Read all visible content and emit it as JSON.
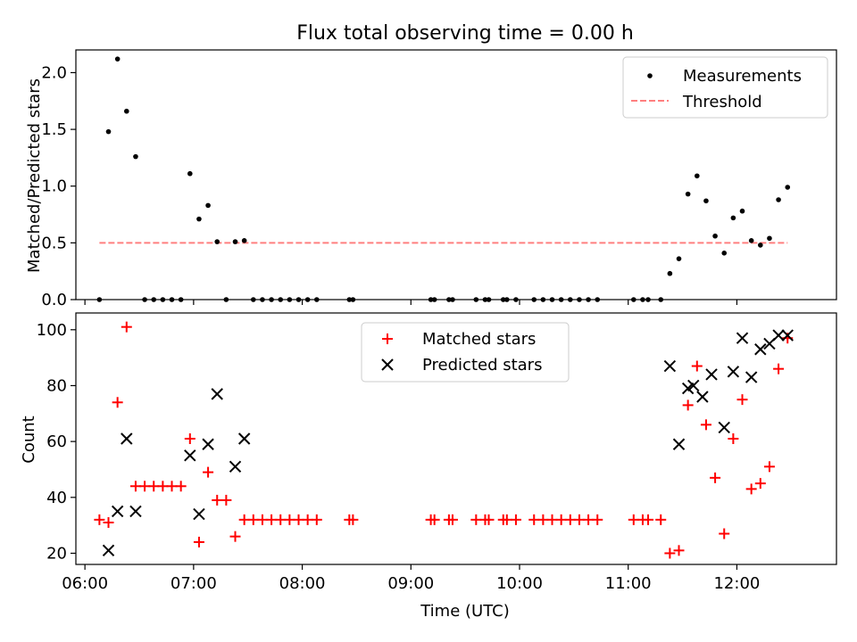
{
  "title": "Flux total observing time = 0.00 h",
  "colors": {
    "measurements": "#000000",
    "threshold": "#ff0000",
    "matched": "#ff0000",
    "predicted": "#000000"
  },
  "chart_data": [
    {
      "type": "scatter",
      "panel": "top",
      "title": "Flux total observing time = 0.00 h",
      "xlabel": "",
      "ylabel": "Matched/Predicted stars",
      "xlim": [
        "05:55",
        "12:55"
      ],
      "ylim": [
        0.0,
        2.2
      ],
      "yticks": [
        "0.0",
        "0.5",
        "1.0",
        "1.5",
        "2.0"
      ],
      "xticks": [],
      "legend_position": "top-right",
      "series": [
        {
          "name": "Measurements",
          "marker": "dot",
          "points": [
            [
              "06:08",
              0.0
            ],
            [
              "06:13",
              1.48
            ],
            [
              "06:18",
              2.12
            ],
            [
              "06:23",
              1.66
            ],
            [
              "06:28",
              1.26
            ],
            [
              "06:33",
              0.0
            ],
            [
              "06:38",
              0.0
            ],
            [
              "06:43",
              0.0
            ],
            [
              "06:48",
              0.0
            ],
            [
              "06:53",
              0.0
            ],
            [
              "06:58",
              1.11
            ],
            [
              "07:03",
              0.71
            ],
            [
              "07:08",
              0.83
            ],
            [
              "07:13",
              0.51
            ],
            [
              "07:18",
              0.0
            ],
            [
              "07:23",
              0.51
            ],
            [
              "07:28",
              0.52
            ],
            [
              "07:33",
              0.0
            ],
            [
              "07:38",
              0.0
            ],
            [
              "07:43",
              0.0
            ],
            [
              "07:48",
              0.0
            ],
            [
              "07:53",
              0.0
            ],
            [
              "07:58",
              0.0
            ],
            [
              "08:03",
              0.0
            ],
            [
              "08:08",
              0.0
            ],
            [
              "08:26",
              0.0
            ],
            [
              "08:28",
              0.0
            ],
            [
              "09:11",
              0.0
            ],
            [
              "09:13",
              0.0
            ],
            [
              "09:21",
              0.0
            ],
            [
              "09:23",
              0.0
            ],
            [
              "09:36",
              0.0
            ],
            [
              "09:41",
              0.0
            ],
            [
              "09:43",
              0.0
            ],
            [
              "09:51",
              0.0
            ],
            [
              "09:53",
              0.0
            ],
            [
              "09:58",
              0.0
            ],
            [
              "10:08",
              0.0
            ],
            [
              "10:13",
              0.0
            ],
            [
              "10:18",
              0.0
            ],
            [
              "10:23",
              0.0
            ],
            [
              "10:28",
              0.0
            ],
            [
              "10:33",
              0.0
            ],
            [
              "10:38",
              0.0
            ],
            [
              "10:43",
              0.0
            ],
            [
              "11:03",
              0.0
            ],
            [
              "11:08",
              0.0
            ],
            [
              "11:11",
              0.0
            ],
            [
              "11:18",
              0.0
            ],
            [
              "11:23",
              0.23
            ],
            [
              "11:28",
              0.36
            ],
            [
              "11:33",
              0.93
            ],
            [
              "11:38",
              1.09
            ],
            [
              "11:43",
              0.87
            ],
            [
              "11:48",
              0.56
            ],
            [
              "11:53",
              0.41
            ],
            [
              "11:58",
              0.72
            ],
            [
              "12:03",
              0.78
            ],
            [
              "12:08",
              0.52
            ],
            [
              "12:13",
              0.48
            ],
            [
              "12:18",
              0.54
            ],
            [
              "12:23",
              0.88
            ],
            [
              "12:28",
              0.99
            ]
          ]
        },
        {
          "name": "Threshold",
          "marker": "dashed-line",
          "points": [
            [
              "06:08",
              0.5
            ],
            [
              "12:28",
              0.5
            ]
          ]
        }
      ]
    },
    {
      "type": "scatter",
      "panel": "bottom",
      "title": "",
      "xlabel": "Time (UTC)",
      "ylabel": "Count",
      "xlim": [
        "05:55",
        "12:55"
      ],
      "ylim": [
        16,
        106
      ],
      "yticks": [
        "20",
        "40",
        "60",
        "80",
        "100"
      ],
      "xticks": [
        "06:00",
        "07:00",
        "08:00",
        "09:00",
        "10:00",
        "11:00",
        "12:00"
      ],
      "legend_position": "top-center",
      "series": [
        {
          "name": "Matched stars",
          "marker": "plus",
          "points": [
            [
              "06:08",
              32
            ],
            [
              "06:13",
              31
            ],
            [
              "06:18",
              74
            ],
            [
              "06:23",
              101
            ],
            [
              "06:28",
              44
            ],
            [
              "06:33",
              44
            ],
            [
              "06:38",
              44
            ],
            [
              "06:43",
              44
            ],
            [
              "06:48",
              44
            ],
            [
              "06:53",
              44
            ],
            [
              "06:58",
              61
            ],
            [
              "07:03",
              24
            ],
            [
              "07:08",
              49
            ],
            [
              "07:13",
              39
            ],
            [
              "07:18",
              39
            ],
            [
              "07:23",
              26
            ],
            [
              "07:28",
              32
            ],
            [
              "07:33",
              32
            ],
            [
              "07:38",
              32
            ],
            [
              "07:43",
              32
            ],
            [
              "07:48",
              32
            ],
            [
              "07:53",
              32
            ],
            [
              "07:58",
              32
            ],
            [
              "08:03",
              32
            ],
            [
              "08:08",
              32
            ],
            [
              "08:26",
              32
            ],
            [
              "08:28",
              32
            ],
            [
              "09:11",
              32
            ],
            [
              "09:13",
              32
            ],
            [
              "09:21",
              32
            ],
            [
              "09:23",
              32
            ],
            [
              "09:36",
              32
            ],
            [
              "09:41",
              32
            ],
            [
              "09:43",
              32
            ],
            [
              "09:51",
              32
            ],
            [
              "09:53",
              32
            ],
            [
              "09:58",
              32
            ],
            [
              "10:08",
              32
            ],
            [
              "10:13",
              32
            ],
            [
              "10:18",
              32
            ],
            [
              "10:23",
              32
            ],
            [
              "10:28",
              32
            ],
            [
              "10:33",
              32
            ],
            [
              "10:38",
              32
            ],
            [
              "10:43",
              32
            ],
            [
              "11:03",
              32
            ],
            [
              "11:08",
              32
            ],
            [
              "11:11",
              32
            ],
            [
              "11:18",
              32
            ],
            [
              "11:23",
              20
            ],
            [
              "11:28",
              21
            ],
            [
              "11:33",
              73
            ],
            [
              "11:38",
              87
            ],
            [
              "11:43",
              66
            ],
            [
              "11:48",
              47
            ],
            [
              "11:53",
              27
            ],
            [
              "11:58",
              61
            ],
            [
              "12:03",
              75
            ],
            [
              "12:08",
              43
            ],
            [
              "12:13",
              45
            ],
            [
              "12:18",
              51
            ],
            [
              "12:23",
              86
            ],
            [
              "12:28",
              97
            ]
          ]
        },
        {
          "name": "Predicted stars",
          "marker": "x",
          "points": [
            [
              "06:13",
              21
            ],
            [
              "06:18",
              35
            ],
            [
              "06:23",
              61
            ],
            [
              "06:28",
              35
            ],
            [
              "06:58",
              55
            ],
            [
              "07:03",
              34
            ],
            [
              "07:08",
              59
            ],
            [
              "07:13",
              77
            ],
            [
              "07:23",
              51
            ],
            [
              "07:28",
              61
            ],
            [
              "11:23",
              87
            ],
            [
              "11:28",
              59
            ],
            [
              "11:33",
              79
            ],
            [
              "11:36",
              80
            ],
            [
              "11:41",
              76
            ],
            [
              "11:46",
              84
            ],
            [
              "11:53",
              65
            ],
            [
              "11:58",
              85
            ],
            [
              "12:03",
              97
            ],
            [
              "12:08",
              83
            ],
            [
              "12:13",
              93
            ],
            [
              "12:18",
              95
            ],
            [
              "12:23",
              98
            ],
            [
              "12:28",
              98
            ]
          ]
        }
      ]
    }
  ]
}
